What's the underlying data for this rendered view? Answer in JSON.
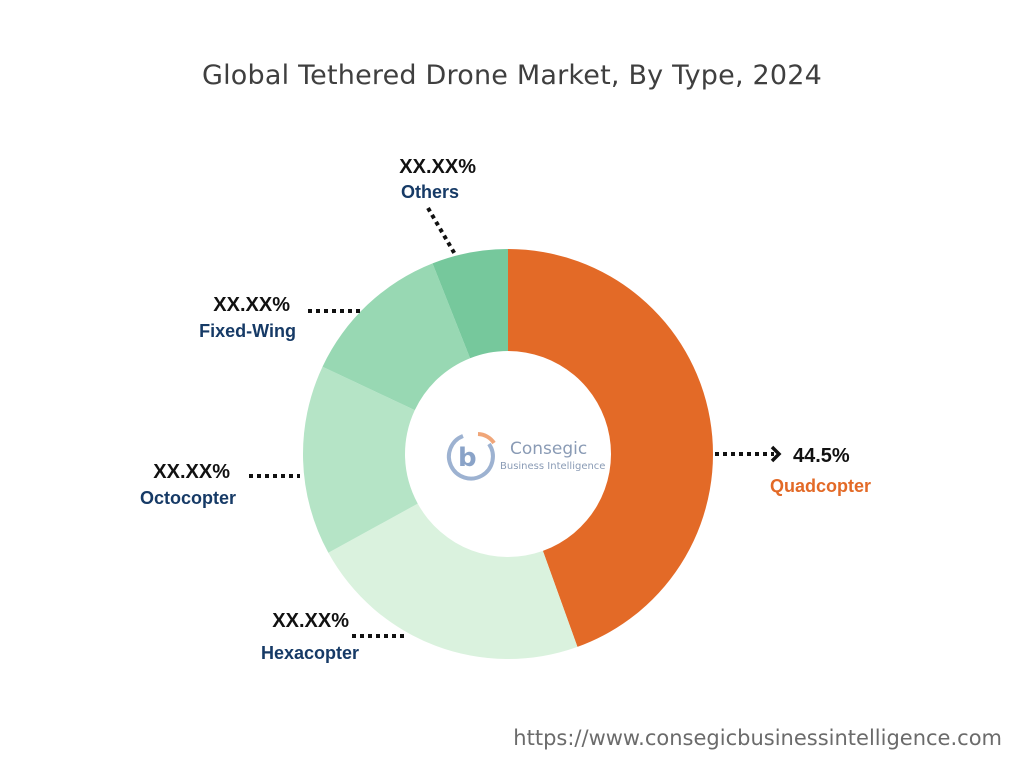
{
  "chart_data": {
    "type": "pie",
    "title": "Global Tethered Drone Market, By Type, 2024",
    "donut": true,
    "slices": [
      {
        "label": "Quadcopter",
        "value": 44.5,
        "display": "44.5%",
        "color": "#e36a27",
        "label_color": "#e36a27"
      },
      {
        "label": "Hexacopter",
        "value": 22.5,
        "display": "XX.XX%",
        "color": "#daf2de",
        "label_color": "#163a66"
      },
      {
        "label": "Octocopter",
        "value": 15.0,
        "display": "XX.XX%",
        "color": "#b5e4c6",
        "label_color": "#163a66"
      },
      {
        "label": "Fixed-Wing",
        "value": 12.0,
        "display": "XX.XX%",
        "color": "#98d8b3",
        "label_color": "#163a66"
      },
      {
        "label": "Others",
        "value": 6.0,
        "display": "XX.XX%",
        "color": "#76c89c",
        "label_color": "#163a66"
      }
    ]
  },
  "logo": {
    "letter": "b",
    "name": "Consegic",
    "tagline": "Business Intelligence"
  },
  "footer": {
    "url": "https://www.consegicbusinessintelligence.com"
  }
}
